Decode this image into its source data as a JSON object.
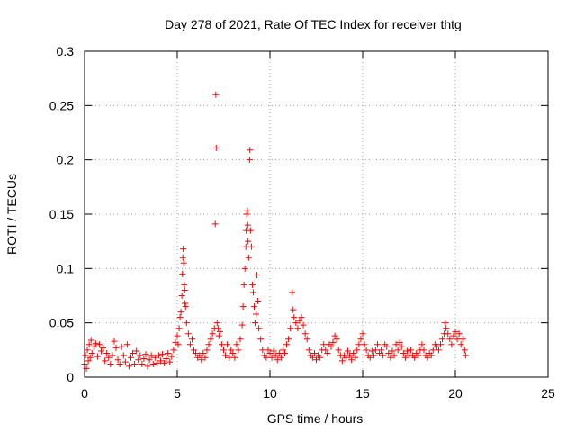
{
  "chart_data": {
    "type": "scatter",
    "title": "Day 278 of 2021, Rate Of TEC Index for receiver thtg",
    "xlabel": "GPS time / hours",
    "ylabel": "ROTI / TECUs",
    "xlim": [
      0,
      25
    ],
    "ylim": [
      0,
      0.3
    ],
    "xticks": [
      0,
      5,
      10,
      15,
      20,
      25
    ],
    "yticks": [
      0,
      0.05,
      0.1,
      0.15,
      0.2,
      0.25,
      0.3
    ],
    "xtick_labels": [
      "0",
      "5",
      "10",
      "15",
      "20",
      "25"
    ],
    "ytick_labels": [
      "0",
      "0.05",
      "0.1",
      "0.15",
      "0.2",
      "0.25",
      "0.3"
    ],
    "grid": true,
    "marker": "+",
    "color": "#ff0000",
    "series": [
      {
        "points": [
          [
            0.0,
            0.012
          ],
          [
            0.05,
            0.02
          ],
          [
            0.1,
            0.008
          ],
          [
            0.15,
            0.025
          ],
          [
            0.2,
            0.015
          ],
          [
            0.25,
            0.03
          ],
          [
            0.3,
            0.018
          ],
          [
            0.35,
            0.034
          ],
          [
            0.4,
            0.022
          ],
          [
            0.5,
            0.028
          ],
          [
            0.6,
            0.031
          ],
          [
            0.7,
            0.019
          ],
          [
            0.8,
            0.03
          ],
          [
            0.9,
            0.024
          ],
          [
            1.0,
            0.027
          ],
          [
            1.1,
            0.015
          ],
          [
            1.2,
            0.022
          ],
          [
            1.3,
            0.018
          ],
          [
            1.4,
            0.012
          ],
          [
            1.5,
            0.02
          ],
          [
            1.6,
            0.033
          ],
          [
            1.7,
            0.027
          ],
          [
            1.8,
            0.016
          ],
          [
            1.9,
            0.012
          ],
          [
            2.0,
            0.028
          ],
          [
            2.1,
            0.02
          ],
          [
            2.2,
            0.014
          ],
          [
            2.3,
            0.03
          ],
          [
            2.4,
            0.01
          ],
          [
            2.5,
            0.018
          ],
          [
            2.6,
            0.022
          ],
          [
            2.7,
            0.012
          ],
          [
            2.8,
            0.024
          ],
          [
            2.9,
            0.016
          ],
          [
            3.0,
            0.02
          ],
          [
            3.1,
            0.012
          ],
          [
            3.2,
            0.017
          ],
          [
            3.3,
            0.021
          ],
          [
            3.4,
            0.01
          ],
          [
            3.5,
            0.016
          ],
          [
            3.6,
            0.02
          ],
          [
            3.7,
            0.012
          ],
          [
            3.8,
            0.018
          ],
          [
            3.9,
            0.013
          ],
          [
            4.0,
            0.02
          ],
          [
            4.1,
            0.015
          ],
          [
            4.2,
            0.021
          ],
          [
            4.3,
            0.013
          ],
          [
            4.4,
            0.017
          ],
          [
            4.5,
            0.022
          ],
          [
            4.6,
            0.014
          ],
          [
            4.7,
            0.019
          ],
          [
            4.8,
            0.025
          ],
          [
            4.9,
            0.032
          ],
          [
            5.0,
            0.038
          ],
          [
            5.05,
            0.03
          ],
          [
            5.1,
            0.045
          ],
          [
            5.15,
            0.055
          ],
          [
            5.2,
            0.06
          ],
          [
            5.25,
            0.075
          ],
          [
            5.28,
            0.095
          ],
          [
            5.3,
            0.11
          ],
          [
            5.32,
            0.118
          ],
          [
            5.35,
            0.105
          ],
          [
            5.38,
            0.085
          ],
          [
            5.4,
            0.08
          ],
          [
            5.42,
            0.068
          ],
          [
            5.45,
            0.065
          ],
          [
            5.5,
            0.05
          ],
          [
            5.6,
            0.04
          ],
          [
            5.7,
            0.03
          ],
          [
            5.8,
            0.035
          ],
          [
            5.9,
            0.025
          ],
          [
            6.0,
            0.022
          ],
          [
            6.1,
            0.018
          ],
          [
            6.2,
            0.02
          ],
          [
            6.3,
            0.016
          ],
          [
            6.4,
            0.022
          ],
          [
            6.5,
            0.018
          ],
          [
            6.6,
            0.025
          ],
          [
            6.7,
            0.03
          ],
          [
            6.8,
            0.035
          ],
          [
            6.9,
            0.04
          ],
          [
            7.0,
            0.045
          ],
          [
            7.05,
            0.141
          ],
          [
            7.08,
            0.26
          ],
          [
            7.1,
            0.211
          ],
          [
            7.15,
            0.05
          ],
          [
            7.2,
            0.045
          ],
          [
            7.25,
            0.038
          ],
          [
            7.3,
            0.042
          ],
          [
            7.4,
            0.03
          ],
          [
            7.5,
            0.025
          ],
          [
            7.6,
            0.02
          ],
          [
            7.7,
            0.03
          ],
          [
            7.8,
            0.018
          ],
          [
            7.9,
            0.025
          ],
          [
            8.0,
            0.022
          ],
          [
            8.1,
            0.018
          ],
          [
            8.2,
            0.03
          ],
          [
            8.3,
            0.025
          ],
          [
            8.4,
            0.035
          ],
          [
            8.5,
            0.048
          ],
          [
            8.55,
            0.065
          ],
          [
            8.6,
            0.085
          ],
          [
            8.65,
            0.1
          ],
          [
            8.7,
            0.12
          ],
          [
            8.72,
            0.135
          ],
          [
            8.75,
            0.15
          ],
          [
            8.78,
            0.153
          ],
          [
            8.8,
            0.14
          ],
          [
            8.82,
            0.125
          ],
          [
            8.85,
            0.11
          ],
          [
            8.9,
            0.2
          ],
          [
            8.92,
            0.209
          ],
          [
            8.95,
            0.135
          ],
          [
            9.0,
            0.12
          ],
          [
            9.05,
            0.085
          ],
          [
            9.1,
            0.078
          ],
          [
            9.15,
            0.065
          ],
          [
            9.2,
            0.05
          ],
          [
            9.25,
            0.058
          ],
          [
            9.3,
            0.094
          ],
          [
            9.35,
            0.07
          ],
          [
            9.4,
            0.045
          ],
          [
            9.5,
            0.035
          ],
          [
            9.6,
            0.025
          ],
          [
            9.7,
            0.02
          ],
          [
            9.8,
            0.018
          ],
          [
            9.9,
            0.025
          ],
          [
            10.0,
            0.022
          ],
          [
            10.1,
            0.018
          ],
          [
            10.2,
            0.024
          ],
          [
            10.3,
            0.02
          ],
          [
            10.4,
            0.016
          ],
          [
            10.5,
            0.022
          ],
          [
            10.6,
            0.018
          ],
          [
            10.7,
            0.025
          ],
          [
            10.8,
            0.022
          ],
          [
            10.9,
            0.03
          ],
          [
            11.0,
            0.035
          ],
          [
            11.1,
            0.045
          ],
          [
            11.2,
            0.078
          ],
          [
            11.25,
            0.062
          ],
          [
            11.3,
            0.055
          ],
          [
            11.4,
            0.05
          ],
          [
            11.5,
            0.045
          ],
          [
            11.6,
            0.052
          ],
          [
            11.7,
            0.055
          ],
          [
            11.8,
            0.048
          ],
          [
            11.9,
            0.04
          ],
          [
            12.0,
            0.035
          ],
          [
            12.1,
            0.025
          ],
          [
            12.2,
            0.02
          ],
          [
            12.3,
            0.018
          ],
          [
            12.4,
            0.022
          ],
          [
            12.5,
            0.016
          ],
          [
            12.6,
            0.02
          ],
          [
            12.7,
            0.018
          ],
          [
            12.8,
            0.025
          ],
          [
            12.9,
            0.03
          ],
          [
            13.0,
            0.025
          ],
          [
            13.1,
            0.022
          ],
          [
            13.2,
            0.03
          ],
          [
            13.3,
            0.028
          ],
          [
            13.4,
            0.032
          ],
          [
            13.5,
            0.038
          ],
          [
            13.6,
            0.035
          ],
          [
            13.7,
            0.025
          ],
          [
            13.8,
            0.02
          ],
          [
            13.9,
            0.015
          ],
          [
            14.0,
            0.02
          ],
          [
            14.1,
            0.018
          ],
          [
            14.2,
            0.024
          ],
          [
            14.3,
            0.02
          ],
          [
            14.4,
            0.016
          ],
          [
            14.5,
            0.022
          ],
          [
            14.6,
            0.018
          ],
          [
            14.7,
            0.025
          ],
          [
            14.8,
            0.03
          ],
          [
            14.9,
            0.035
          ],
          [
            15.0,
            0.04
          ],
          [
            15.1,
            0.03
          ],
          [
            15.2,
            0.025
          ],
          [
            15.3,
            0.02
          ],
          [
            15.4,
            0.018
          ],
          [
            15.5,
            0.024
          ],
          [
            15.6,
            0.02
          ],
          [
            15.7,
            0.025
          ],
          [
            15.8,
            0.03
          ],
          [
            15.9,
            0.022
          ],
          [
            16.0,
            0.025
          ],
          [
            16.1,
            0.02
          ],
          [
            16.2,
            0.03
          ],
          [
            16.3,
            0.028
          ],
          [
            16.4,
            0.022
          ],
          [
            16.5,
            0.018
          ],
          [
            16.6,
            0.024
          ],
          [
            16.7,
            0.02
          ],
          [
            16.8,
            0.03
          ],
          [
            16.9,
            0.025
          ],
          [
            17.0,
            0.032
          ],
          [
            17.1,
            0.028
          ],
          [
            17.2,
            0.022
          ],
          [
            17.3,
            0.018
          ],
          [
            17.4,
            0.024
          ],
          [
            17.5,
            0.02
          ],
          [
            17.6,
            0.025
          ],
          [
            17.7,
            0.02
          ],
          [
            17.8,
            0.018
          ],
          [
            17.9,
            0.022
          ],
          [
            18.0,
            0.02
          ],
          [
            18.1,
            0.025
          ],
          [
            18.2,
            0.03
          ],
          [
            18.3,
            0.025
          ],
          [
            18.4,
            0.02
          ],
          [
            18.5,
            0.018
          ],
          [
            18.6,
            0.022
          ],
          [
            18.7,
            0.02
          ],
          [
            18.8,
            0.025
          ],
          [
            18.9,
            0.03
          ],
          [
            19.0,
            0.028
          ],
          [
            19.1,
            0.025
          ],
          [
            19.2,
            0.03
          ],
          [
            19.3,
            0.035
          ],
          [
            19.4,
            0.04
          ],
          [
            19.45,
            0.05
          ],
          [
            19.5,
            0.045
          ],
          [
            19.6,
            0.04
          ],
          [
            19.7,
            0.035
          ],
          [
            19.8,
            0.03
          ],
          [
            19.9,
            0.038
          ],
          [
            20.0,
            0.042
          ],
          [
            20.1,
            0.035
          ],
          [
            20.2,
            0.04
          ],
          [
            20.3,
            0.03
          ],
          [
            20.4,
            0.035
          ],
          [
            20.5,
            0.025
          ],
          [
            20.55,
            0.02
          ]
        ]
      }
    ]
  }
}
